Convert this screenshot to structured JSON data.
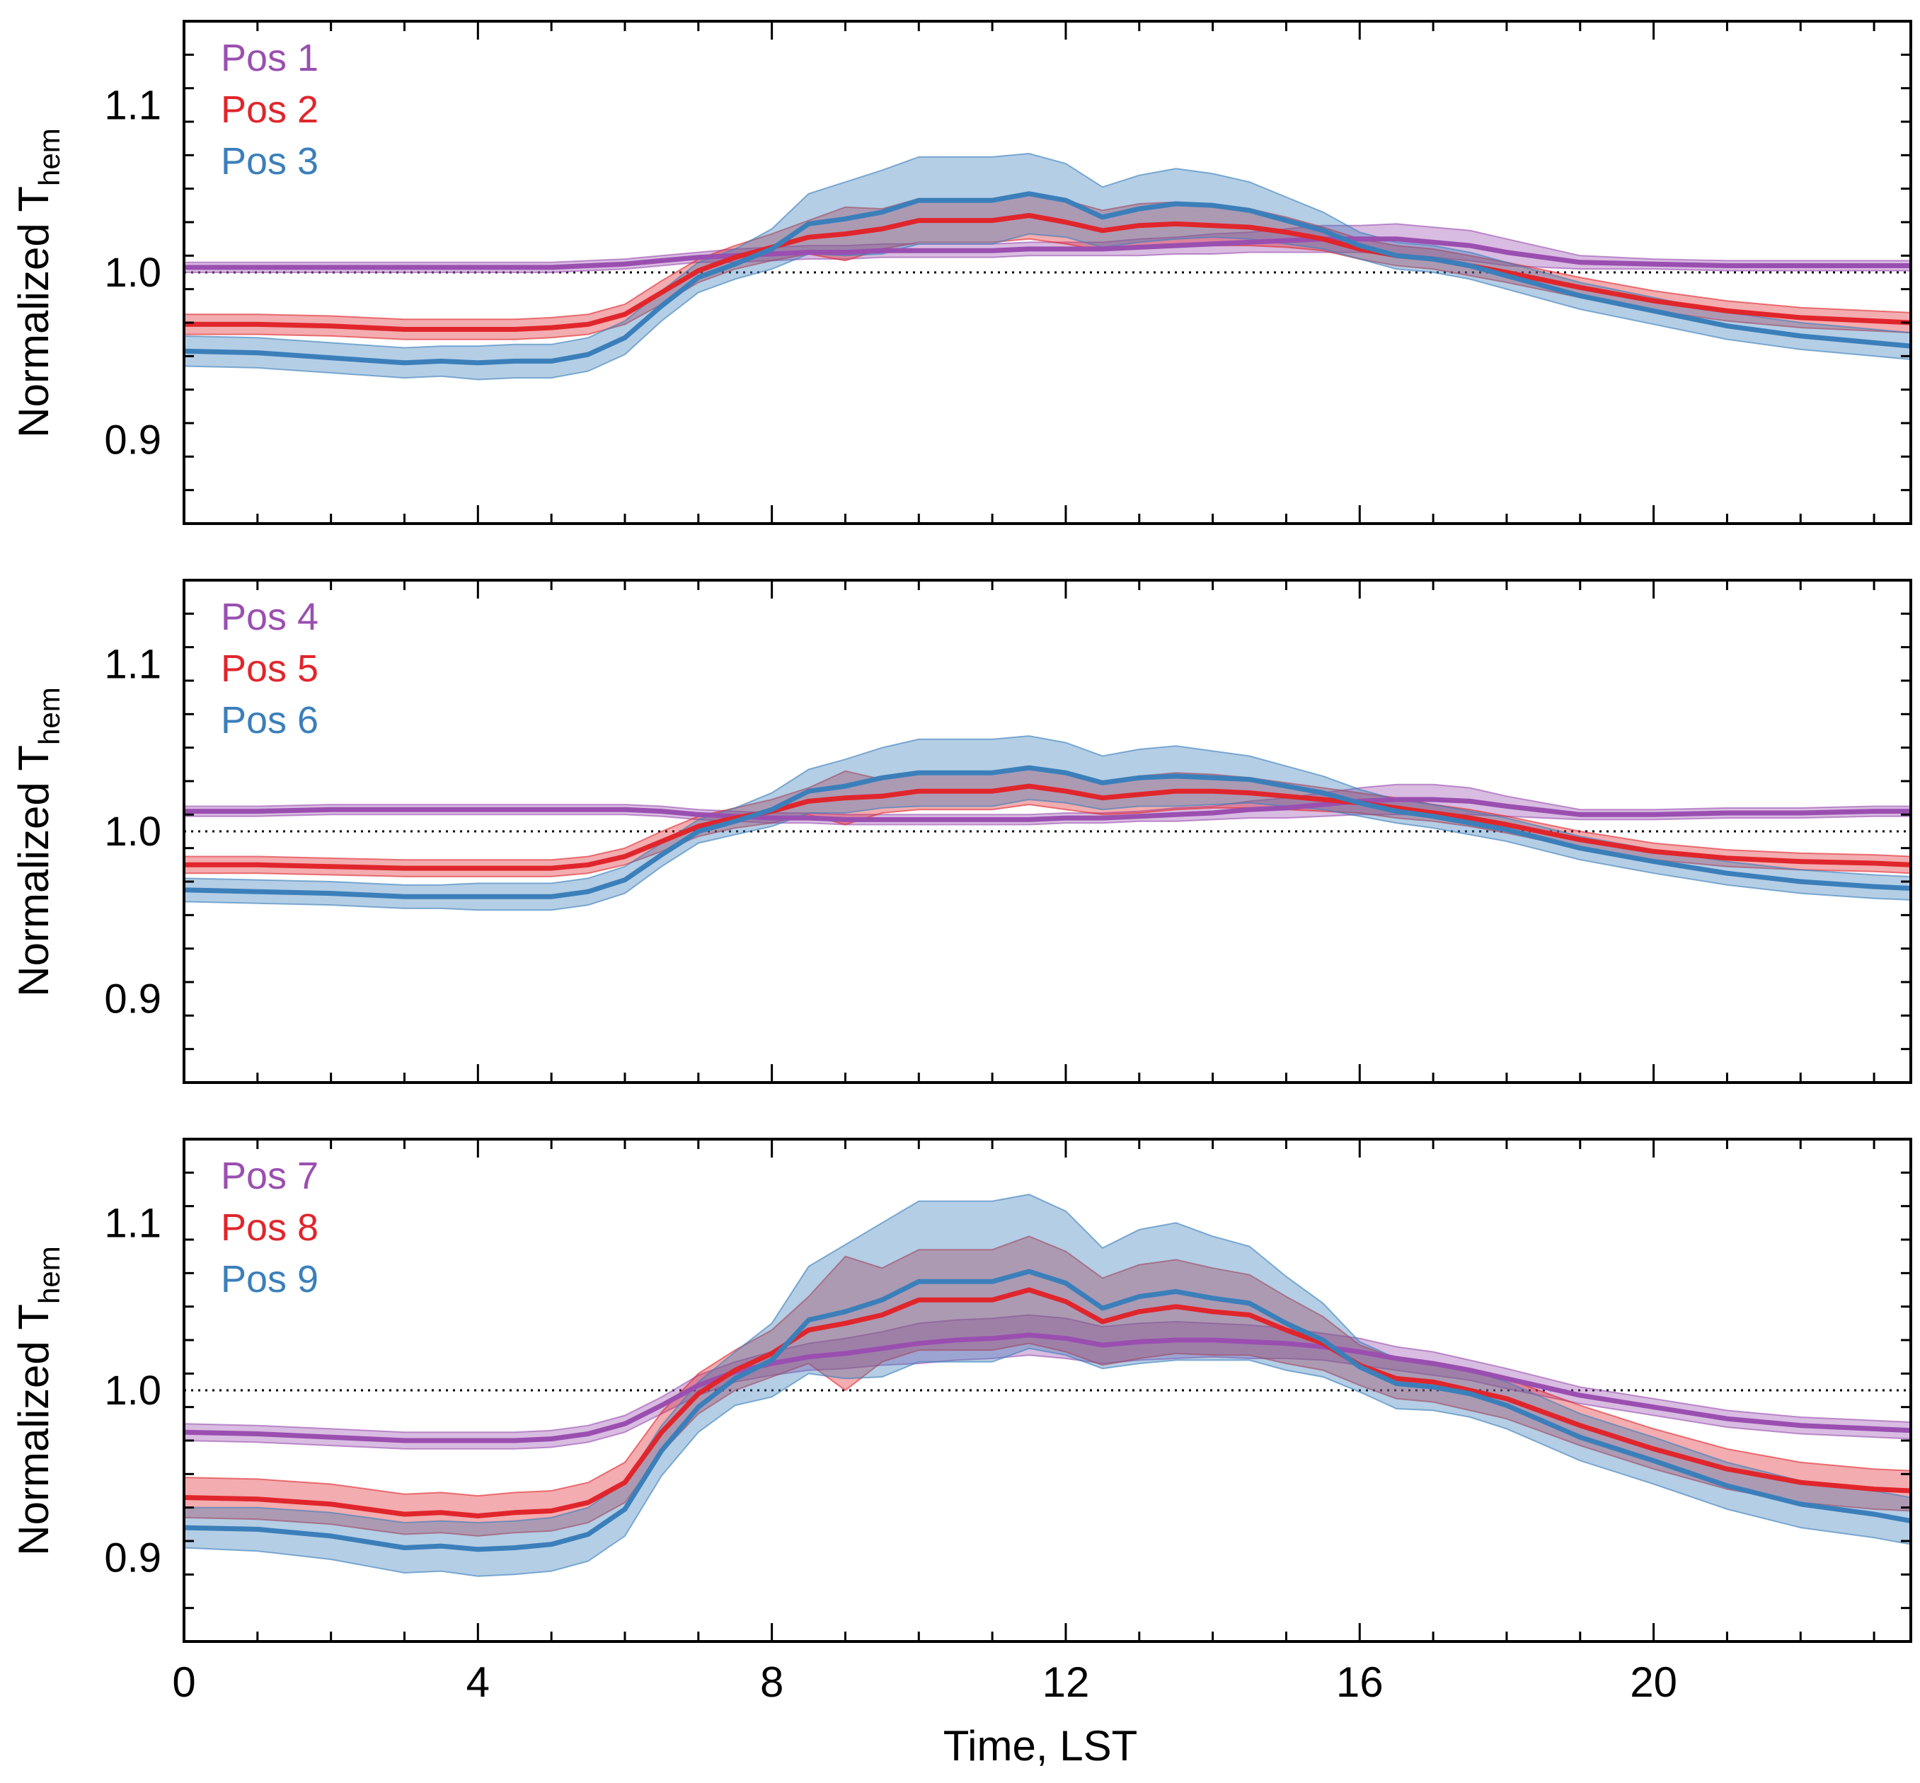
{
  "chart_data": {
    "type": "line",
    "xlabel": "Time, LST",
    "x_ticks": [
      0,
      4,
      8,
      12,
      16,
      20
    ],
    "xlim": [
      0,
      23.5
    ],
    "series_colors": [
      "#9a4fb0",
      "#e0262c",
      "#3b7fba"
    ],
    "panels": [
      {
        "ylabel_main": "Normalized T",
        "ylabel_sub": "hem",
        "ylim": [
          0.85,
          1.15
        ],
        "y_ticks": [
          "0.9",
          "1.0",
          "1.1"
        ],
        "reference_line": 1.0,
        "x": [
          0,
          1,
          2,
          3,
          3.5,
          4,
          4.5,
          5,
          5.5,
          6,
          6.5,
          7,
          7.5,
          8,
          8.5,
          9,
          9.5,
          10,
          10.5,
          11,
          11.5,
          12,
          12.5,
          13,
          13.5,
          14,
          14.5,
          15,
          15.5,
          16,
          16.5,
          17,
          17.5,
          18,
          19,
          20,
          21,
          22,
          23,
          23.5
        ],
        "series": [
          {
            "name": "Pos 1",
            "values": [
              1.003,
              1.003,
              1.003,
              1.003,
              1.003,
              1.003,
              1.003,
              1.003,
              1.004,
              1.005,
              1.007,
              1.009,
              1.01,
              1.011,
              1.012,
              1.012,
              1.013,
              1.013,
              1.013,
              1.013,
              1.014,
              1.014,
              1.014,
              1.015,
              1.016,
              1.017,
              1.018,
              1.019,
              1.02,
              1.02,
              1.02,
              1.018,
              1.016,
              1.012,
              1.006,
              1.005,
              1.004,
              1.004,
              1.004,
              1.004
            ],
            "band": [
              0.003,
              0.003,
              0.003,
              0.003,
              0.003,
              0.003,
              0.003,
              0.003,
              0.003,
              0.003,
              0.003,
              0.003,
              0.004,
              0.004,
              0.004,
              0.004,
              0.004,
              0.004,
              0.004,
              0.004,
              0.004,
              0.004,
              0.004,
              0.005,
              0.005,
              0.006,
              0.006,
              0.007,
              0.008,
              0.008,
              0.009,
              0.009,
              0.009,
              0.008,
              0.004,
              0.003,
              0.003,
              0.003,
              0.003,
              0.003
            ]
          },
          {
            "name": "Pos 2",
            "values": [
              0.969,
              0.969,
              0.968,
              0.966,
              0.966,
              0.966,
              0.966,
              0.967,
              0.969,
              0.975,
              0.988,
              1.001,
              1.009,
              1.015,
              1.021,
              1.023,
              1.026,
              1.031,
              1.031,
              1.031,
              1.034,
              1.03,
              1.025,
              1.028,
              1.029,
              1.028,
              1.027,
              1.024,
              1.02,
              1.014,
              1.01,
              1.008,
              1.004,
              1.0,
              0.991,
              0.983,
              0.977,
              0.973,
              0.971,
              0.97
            ],
            "band": [
              0.006,
              0.006,
              0.006,
              0.006,
              0.006,
              0.006,
              0.006,
              0.006,
              0.006,
              0.006,
              0.007,
              0.007,
              0.007,
              0.008,
              0.01,
              0.016,
              0.012,
              0.013,
              0.013,
              0.013,
              0.014,
              0.013,
              0.012,
              0.013,
              0.013,
              0.012,
              0.011,
              0.009,
              0.007,
              0.006,
              0.006,
              0.006,
              0.006,
              0.006,
              0.006,
              0.006,
              0.006,
              0.006,
              0.006,
              0.006
            ]
          },
          {
            "name": "Pos 3",
            "values": [
              0.953,
              0.952,
              0.949,
              0.946,
              0.947,
              0.946,
              0.947,
              0.947,
              0.951,
              0.961,
              0.98,
              0.997,
              1.005,
              1.014,
              1.029,
              1.032,
              1.036,
              1.043,
              1.043,
              1.043,
              1.047,
              1.043,
              1.033,
              1.038,
              1.041,
              1.04,
              1.037,
              1.031,
              1.025,
              1.016,
              1.01,
              1.008,
              1.004,
              0.998,
              0.986,
              0.977,
              0.968,
              0.962,
              0.958,
              0.956
            ],
            "band": [
              0.009,
              0.009,
              0.009,
              0.009,
              0.009,
              0.01,
              0.01,
              0.01,
              0.01,
              0.01,
              0.009,
              0.009,
              0.009,
              0.012,
              0.018,
              0.022,
              0.025,
              0.026,
              0.026,
              0.026,
              0.024,
              0.022,
              0.018,
              0.02,
              0.021,
              0.019,
              0.017,
              0.014,
              0.011,
              0.008,
              0.008,
              0.008,
              0.008,
              0.008,
              0.008,
              0.008,
              0.008,
              0.008,
              0.008,
              0.008
            ]
          }
        ]
      },
      {
        "ylabel_main": "Normalized T",
        "ylabel_sub": "hem",
        "ylim": [
          0.85,
          1.15
        ],
        "y_ticks": [
          "0.9",
          "1.0",
          "1.1"
        ],
        "reference_line": 1.0,
        "x": [
          0,
          1,
          2,
          3,
          3.5,
          4,
          4.5,
          5,
          5.5,
          6,
          6.5,
          7,
          7.5,
          8,
          8.5,
          9,
          9.5,
          10,
          10.5,
          11,
          11.5,
          12,
          12.5,
          13,
          13.5,
          14,
          14.5,
          15,
          15.5,
          16,
          16.5,
          17,
          17.5,
          18,
          19,
          20,
          21,
          22,
          23,
          23.5
        ],
        "series": [
          {
            "name": "Pos 4",
            "values": [
              1.012,
              1.012,
              1.013,
              1.013,
              1.013,
              1.013,
              1.013,
              1.013,
              1.013,
              1.013,
              1.012,
              1.01,
              1.009,
              1.008,
              1.008,
              1.007,
              1.007,
              1.007,
              1.007,
              1.007,
              1.007,
              1.008,
              1.008,
              1.009,
              1.01,
              1.011,
              1.013,
              1.014,
              1.016,
              1.018,
              1.019,
              1.019,
              1.018,
              1.015,
              1.01,
              1.01,
              1.011,
              1.011,
              1.012,
              1.012
            ],
            "band": [
              0.003,
              0.003,
              0.003,
              0.003,
              0.003,
              0.003,
              0.003,
              0.003,
              0.003,
              0.003,
              0.003,
              0.003,
              0.003,
              0.003,
              0.003,
              0.003,
              0.003,
              0.003,
              0.003,
              0.003,
              0.003,
              0.003,
              0.003,
              0.003,
              0.004,
              0.004,
              0.005,
              0.006,
              0.007,
              0.008,
              0.009,
              0.009,
              0.008,
              0.006,
              0.003,
              0.003,
              0.003,
              0.003,
              0.003,
              0.003
            ]
          },
          {
            "name": "Pos 5",
            "values": [
              0.98,
              0.98,
              0.979,
              0.978,
              0.978,
              0.978,
              0.978,
              0.978,
              0.98,
              0.985,
              0.994,
              1.003,
              1.008,
              1.012,
              1.018,
              1.02,
              1.021,
              1.024,
              1.024,
              1.024,
              1.027,
              1.024,
              1.02,
              1.022,
              1.024,
              1.024,
              1.023,
              1.021,
              1.019,
              1.017,
              1.014,
              1.011,
              1.008,
              1.004,
              0.995,
              0.988,
              0.984,
              0.982,
              0.981,
              0.98
            ],
            "band": [
              0.005,
              0.005,
              0.005,
              0.005,
              0.005,
              0.005,
              0.005,
              0.005,
              0.005,
              0.005,
              0.006,
              0.006,
              0.006,
              0.007,
              0.008,
              0.016,
              0.01,
              0.011,
              0.011,
              0.011,
              0.011,
              0.011,
              0.01,
              0.011,
              0.011,
              0.01,
              0.009,
              0.008,
              0.007,
              0.006,
              0.006,
              0.005,
              0.005,
              0.005,
              0.005,
              0.005,
              0.005,
              0.005,
              0.005,
              0.005
            ]
          },
          {
            "name": "Pos 6",
            "values": [
              0.965,
              0.964,
              0.963,
              0.961,
              0.961,
              0.961,
              0.961,
              0.961,
              0.964,
              0.971,
              0.986,
              1.0,
              1.006,
              1.013,
              1.024,
              1.027,
              1.032,
              1.035,
              1.035,
              1.035,
              1.038,
              1.035,
              1.029,
              1.032,
              1.033,
              1.032,
              1.031,
              1.027,
              1.023,
              1.017,
              1.012,
              1.009,
              1.005,
              1.001,
              0.99,
              0.982,
              0.975,
              0.97,
              0.967,
              0.966
            ],
            "band": [
              0.007,
              0.007,
              0.007,
              0.007,
              0.007,
              0.008,
              0.008,
              0.008,
              0.008,
              0.008,
              0.007,
              0.007,
              0.008,
              0.01,
              0.013,
              0.016,
              0.018,
              0.02,
              0.02,
              0.02,
              0.019,
              0.018,
              0.016,
              0.017,
              0.018,
              0.016,
              0.014,
              0.012,
              0.01,
              0.008,
              0.007,
              0.007,
              0.007,
              0.007,
              0.007,
              0.007,
              0.007,
              0.007,
              0.007,
              0.007
            ]
          }
        ]
      },
      {
        "ylabel_main": "Normalized T",
        "ylabel_sub": "hem",
        "ylim": [
          0.85,
          1.15
        ],
        "y_ticks": [
          "0.9",
          "1.0",
          "1.1"
        ],
        "reference_line": 1.0,
        "x": [
          0,
          1,
          2,
          3,
          3.5,
          4,
          4.5,
          5,
          5.5,
          6,
          6.5,
          7,
          7.5,
          8,
          8.5,
          9,
          9.5,
          10,
          10.5,
          11,
          11.5,
          12,
          12.5,
          13,
          13.5,
          14,
          14.5,
          15,
          15.5,
          16,
          16.5,
          17,
          17.5,
          18,
          19,
          20,
          21,
          22,
          23,
          23.5
        ],
        "series": [
          {
            "name": "Pos 7",
            "values": [
              0.975,
              0.974,
              0.972,
              0.97,
              0.97,
              0.97,
              0.97,
              0.971,
              0.974,
              0.98,
              0.991,
              1.003,
              1.011,
              1.016,
              1.02,
              1.022,
              1.025,
              1.028,
              1.03,
              1.031,
              1.033,
              1.031,
              1.027,
              1.029,
              1.03,
              1.03,
              1.029,
              1.028,
              1.026,
              1.023,
              1.019,
              1.016,
              1.012,
              1.007,
              0.997,
              0.99,
              0.983,
              0.979,
              0.977,
              0.976
            ],
            "band": [
              0.005,
              0.005,
              0.005,
              0.005,
              0.005,
              0.005,
              0.005,
              0.005,
              0.005,
              0.005,
              0.005,
              0.006,
              0.006,
              0.007,
              0.008,
              0.009,
              0.01,
              0.012,
              0.012,
              0.012,
              0.012,
              0.012,
              0.011,
              0.011,
              0.011,
              0.01,
              0.01,
              0.009,
              0.008,
              0.008,
              0.007,
              0.007,
              0.006,
              0.006,
              0.005,
              0.005,
              0.005,
              0.005,
              0.005,
              0.005
            ]
          },
          {
            "name": "Pos 8",
            "values": [
              0.936,
              0.935,
              0.932,
              0.926,
              0.927,
              0.925,
              0.927,
              0.928,
              0.933,
              0.945,
              0.975,
              0.998,
              1.012,
              1.022,
              1.036,
              1.04,
              1.045,
              1.054,
              1.054,
              1.054,
              1.06,
              1.053,
              1.041,
              1.047,
              1.05,
              1.047,
              1.045,
              1.036,
              1.028,
              1.015,
              1.007,
              1.005,
              1.0,
              0.995,
              0.979,
              0.965,
              0.953,
              0.945,
              0.941,
              0.94
            ],
            "band": [
              0.012,
              0.012,
              0.012,
              0.012,
              0.012,
              0.012,
              0.012,
              0.012,
              0.012,
              0.012,
              0.012,
              0.012,
              0.012,
              0.014,
              0.02,
              0.04,
              0.028,
              0.03,
              0.03,
              0.03,
              0.032,
              0.03,
              0.026,
              0.028,
              0.028,
              0.026,
              0.024,
              0.02,
              0.016,
              0.012,
              0.012,
              0.012,
              0.012,
              0.012,
              0.012,
              0.012,
              0.012,
              0.012,
              0.012,
              0.012
            ]
          },
          {
            "name": "Pos 9",
            "values": [
              0.918,
              0.917,
              0.913,
              0.906,
              0.907,
              0.905,
              0.906,
              0.908,
              0.914,
              0.929,
              0.964,
              0.99,
              1.007,
              1.018,
              1.042,
              1.047,
              1.054,
              1.065,
              1.065,
              1.065,
              1.071,
              1.064,
              1.049,
              1.056,
              1.059,
              1.055,
              1.052,
              1.04,
              1.03,
              1.014,
              1.004,
              1.002,
              0.998,
              0.991,
              0.972,
              0.958,
              0.943,
              0.932,
              0.926,
              0.922
            ],
            "band": [
              0.012,
              0.013,
              0.014,
              0.015,
              0.015,
              0.016,
              0.016,
              0.016,
              0.016,
              0.016,
              0.015,
              0.015,
              0.016,
              0.022,
              0.032,
              0.04,
              0.046,
              0.048,
              0.048,
              0.048,
              0.046,
              0.043,
              0.036,
              0.04,
              0.041,
              0.037,
              0.034,
              0.028,
              0.022,
              0.015,
              0.015,
              0.014,
              0.014,
              0.014,
              0.014,
              0.014,
              0.014,
              0.014,
              0.014,
              0.014
            ]
          }
        ]
      }
    ]
  }
}
